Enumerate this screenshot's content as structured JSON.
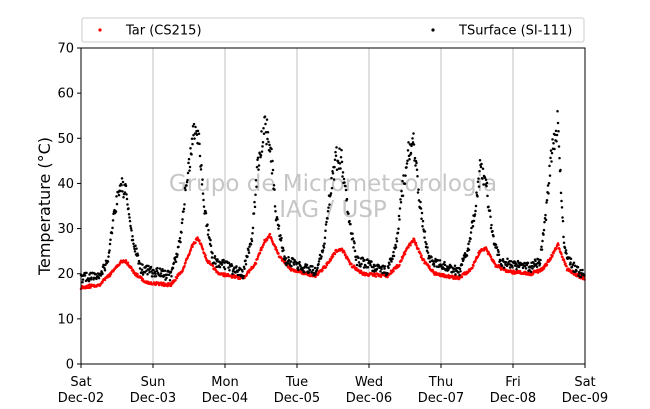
{
  "chart_data": {
    "type": "scatter",
    "ylabel": "Temperature (°C)",
    "ylim": [
      0,
      70
    ],
    "yticks": [
      0,
      10,
      20,
      30,
      40,
      50,
      60,
      70
    ],
    "xlim": [
      "2023-12-02 00:00",
      "2023-12-09 00:00"
    ],
    "xtick_labels": [
      {
        "day": "Sat",
        "date": "Dec-02"
      },
      {
        "day": "Sun",
        "date": "Dec-03"
      },
      {
        "day": "Mon",
        "date": "Dec-04"
      },
      {
        "day": "Tue",
        "date": "Dec-05"
      },
      {
        "day": "Wed",
        "date": "Dec-06"
      },
      {
        "day": "Thu",
        "date": "Dec-07"
      },
      {
        "day": "Fri",
        "date": "Dec-08"
      },
      {
        "day": "Sat",
        "date": "Dec-09"
      }
    ],
    "grid": "vertical",
    "legend_placement": "top",
    "watermark": [
      "Grupo de Micrometeorologia",
      "IAG / USP"
    ],
    "series": [
      {
        "name": "Tar (CS215)",
        "color": "#ff0000",
        "x": [
          "2023-12-02 00:00",
          "2023-12-02 06:00",
          "2023-12-02 10:00",
          "2023-12-02 13:00",
          "2023-12-02 15:00",
          "2023-12-02 18:00",
          "2023-12-02 22:00",
          "2023-12-03 06:00",
          "2023-12-03 10:00",
          "2023-12-03 13:00",
          "2023-12-03 15:00",
          "2023-12-03 18:00",
          "2023-12-03 22:00",
          "2023-12-04 06:00",
          "2023-12-04 10:00",
          "2023-12-04 13:00",
          "2023-12-04 15:00",
          "2023-12-04 18:00",
          "2023-12-04 22:00",
          "2023-12-05 06:00",
          "2023-12-05 10:00",
          "2023-12-05 13:00",
          "2023-12-05 15:00",
          "2023-12-05 18:00",
          "2023-12-05 22:00",
          "2023-12-06 06:00",
          "2023-12-06 10:00",
          "2023-12-06 13:00",
          "2023-12-06 15:00",
          "2023-12-06 18:00",
          "2023-12-06 22:00",
          "2023-12-07 06:00",
          "2023-12-07 10:00",
          "2023-12-07 13:00",
          "2023-12-07 15:00",
          "2023-12-07 18:00",
          "2023-12-07 22:00",
          "2023-12-08 06:00",
          "2023-12-08 10:00",
          "2023-12-08 13:00",
          "2023-12-08 15:00",
          "2023-12-08 18:00",
          "2023-12-08 22:00",
          "2023-12-09 00:00"
        ],
        "y": [
          17,
          17.5,
          20,
          22.5,
          22.8,
          20,
          18,
          17.5,
          21,
          26,
          28,
          23,
          20,
          19,
          22,
          27,
          28.5,
          24,
          21,
          19.5,
          22,
          25,
          25.5,
          22,
          20,
          19.5,
          22,
          26,
          27.5,
          23,
          20,
          19,
          21,
          25,
          25.5,
          22,
          20.5,
          20,
          21,
          24,
          26.5,
          21,
          19.5,
          19
        ]
      },
      {
        "name": "TSurface (SI-111)",
        "color": "#000000",
        "x": [
          "2023-12-02 00:00",
          "2023-12-02 06:00",
          "2023-12-02 09:00",
          "2023-12-02 11:00",
          "2023-12-02 13:00",
          "2023-12-02 15:00",
          "2023-12-02 17:00",
          "2023-12-02 20:00",
          "2023-12-03 06:00",
          "2023-12-03 09:00",
          "2023-12-03 11:00",
          "2023-12-03 13:00",
          "2023-12-03 15:00",
          "2023-12-03 17:00",
          "2023-12-03 20:00",
          "2023-12-04 06:00",
          "2023-12-04 09:00",
          "2023-12-04 11:00",
          "2023-12-04 13:00",
          "2023-12-04 15:00",
          "2023-12-04 17:00",
          "2023-12-04 20:00",
          "2023-12-05 06:00",
          "2023-12-05 09:00",
          "2023-12-05 11:00",
          "2023-12-05 13:00",
          "2023-12-05 15:00",
          "2023-12-05 17:00",
          "2023-12-05 20:00",
          "2023-12-06 06:00",
          "2023-12-06 09:00",
          "2023-12-06 11:00",
          "2023-12-06 13:00",
          "2023-12-06 15:00",
          "2023-12-06 17:00",
          "2023-12-06 20:00",
          "2023-12-07 06:00",
          "2023-12-07 09:00",
          "2023-12-07 11:00",
          "2023-12-07 13:00",
          "2023-12-07 15:00",
          "2023-12-07 17:00",
          "2023-12-07 20:00",
          "2023-12-08 06:00",
          "2023-12-08 09:00",
          "2023-12-08 11:00",
          "2023-12-08 13:00",
          "2023-12-08 15:00",
          "2023-12-08 17:00",
          "2023-12-08 20:00",
          "2023-12-09 00:00"
        ],
        "y": [
          19,
          19.5,
          23,
          33,
          40,
          38,
          28,
          21,
          19.5,
          27,
          40,
          49,
          52,
          35,
          23,
          20,
          28,
          45,
          52,
          50,
          33,
          23,
          20.5,
          26,
          38,
          46,
          45,
          33,
          23,
          20.5,
          26,
          38,
          46,
          49,
          35,
          23,
          20.5,
          25,
          33,
          43,
          40,
          29,
          22.5,
          21.5,
          23,
          33,
          48,
          53,
          26,
          21.5,
          19.5
        ]
      }
    ]
  }
}
